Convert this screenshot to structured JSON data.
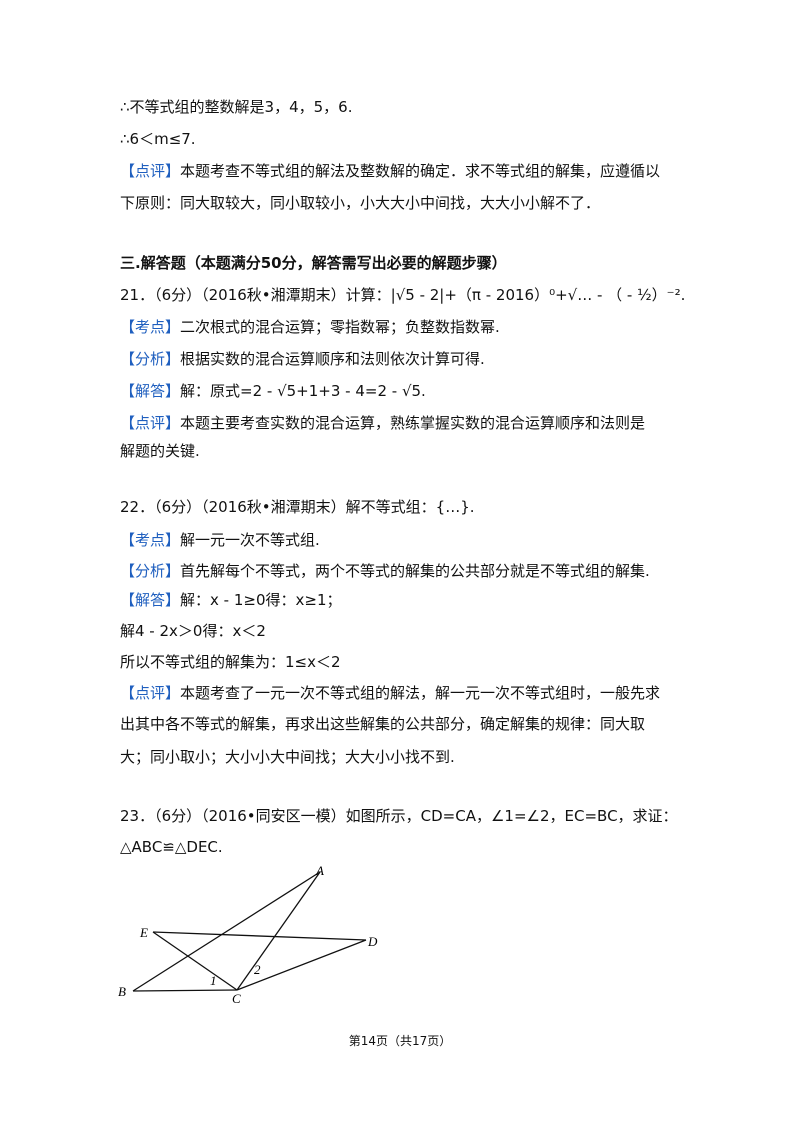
{
  "lines": [
    {
      "text": "∴不等式组的整数解是3，4，5，6."
    },
    {
      "text": "∴6＜m≤7."
    },
    {
      "tag": "【点评】",
      "text": "本题考查不等式组的解法及整数解的确定．求不等式组的解集，应遵循以"
    },
    {
      "text": "下原则：同大取较大，同小取较小，小大大小中间找，大大小小解不了．"
    },
    {
      "text": "三.解答题（本题满分50分，解答需写出必要的解题步骤）",
      "bold": true
    },
    {
      "text": "21．（6分）（2016秋•湘潭期末）计算：|√5 - 2|+（π - 2016）⁰+√… - （ - ½）⁻²."
    },
    {
      "tag": "【考点】",
      "text": "二次根式的混合运算；零指数幂；负整数指数幂."
    },
    {
      "tag": "【分析】",
      "text": "根据实数的混合运算顺序和法则依次计算可得."
    },
    {
      "tag": "【解答】",
      "text": "解：原式=2 - √5+1+3 - 4=2 - √5."
    },
    {
      "tag": "【点评】",
      "text": "本题主要考查实数的混合运算，熟练掌握实数的混合运算顺序和法则是"
    },
    {
      "text": "解题的关键."
    },
    {
      "text": "22．（6分）（2016秋•湘潭期末）解不等式组：{…}."
    },
    {
      "tag": "【考点】",
      "text": "解一元一次不等式组."
    },
    {
      "tag": "【分析】",
      "text": "首先解每个不等式，两个不等式的解集的公共部分就是不等式组的解集."
    },
    {
      "tag": "【解答】",
      "text": "解：x - 1≥0得：x≥1；"
    },
    {
      "text": "解4 - 2x＞0得：x＜2"
    },
    {
      "text": "所以不等式组的解集为：1≤x＜2"
    },
    {
      "tag": "【点评】",
      "text": "本题考查了一元一次不等式组的解法，解一元一次不等式组时，一般先求"
    },
    {
      "text": "出其中各不等式的解集，再求出这些解集的公共部分，确定解集的规律：同大取"
    },
    {
      "text": "大；同小取小；大小小大中间找；大大小小找不到."
    },
    {
      "text": "23．（6分）（2016•同安区一模）如图所示，CD=CA，∠1=∠2，EC=BC，求证："
    },
    {
      "text": "△ABC≌△DEC."
    }
  ],
  "figure": {
    "points": [
      "A",
      "E",
      "D",
      "B",
      "C"
    ],
    "angles": [
      "1",
      "2"
    ]
  },
  "footer": "第14页（共17页）"
}
